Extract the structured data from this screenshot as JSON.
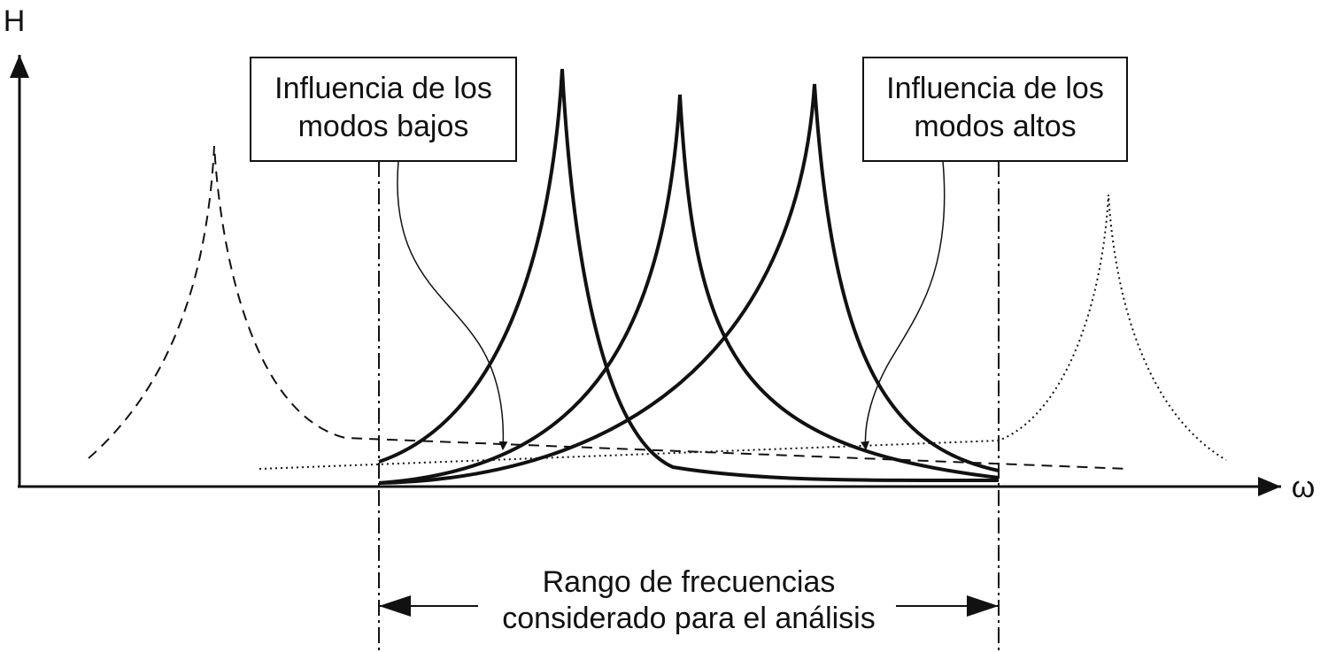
{
  "axes": {
    "y_label": "H",
    "x_label": "ω"
  },
  "labels": [
    {
      "lines": [
        "Influencia de los",
        "modos bajos"
      ]
    },
    {
      "lines": [
        "Influencia de los",
        "modos altos"
      ]
    },
    {
      "lines": [
        "Rango de frecuencias",
        "considerado para el análisis"
      ]
    }
  ]
}
